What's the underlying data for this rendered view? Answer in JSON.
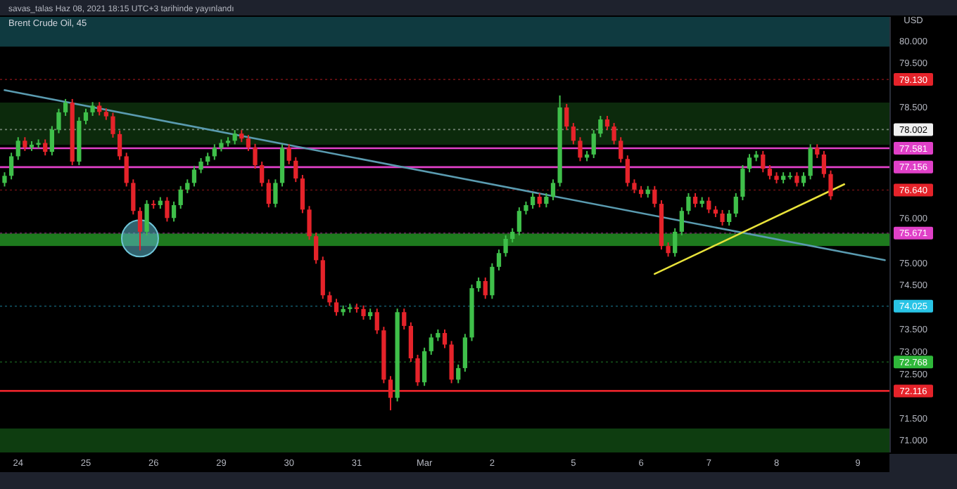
{
  "chart_data": {
    "type": "candlestick",
    "title": "Brent Crude Oil, 45",
    "ylabel": "USD",
    "annotations": [
      "savas_talas Haz 08, 2021 18:15 UTC+3 tarihinde yayınlandı"
    ],
    "categories": [
      null,
      null,
      "24",
      null,
      null,
      null,
      null,
      null,
      null,
      null,
      null,
      null,
      "25",
      null,
      null,
      null,
      null,
      null,
      null,
      null,
      null,
      null,
      "26",
      null,
      null,
      null,
      null,
      null,
      null,
      null,
      null,
      null,
      "29",
      null,
      null,
      null,
      null,
      null,
      null,
      null,
      null,
      null,
      "30",
      null,
      null,
      null,
      null,
      null,
      null,
      null,
      null,
      null,
      "31",
      null,
      null,
      null,
      null,
      null,
      null,
      null,
      null,
      null,
      "Mar",
      null,
      null,
      null,
      null,
      null,
      null,
      null,
      null,
      null,
      "2",
      null,
      null,
      null,
      null,
      null,
      null,
      null,
      null,
      null,
      null,
      null,
      "5",
      null,
      null,
      null,
      null,
      null,
      null,
      null,
      null,
      null,
      "6",
      null,
      null,
      null,
      null,
      null,
      null,
      null,
      null,
      null,
      "7",
      null,
      null,
      null,
      null,
      null,
      null,
      null,
      null,
      null,
      "8",
      null,
      null,
      null,
      null,
      null,
      null,
      null,
      null,
      null,
      null,
      null,
      "9",
      null,
      null,
      null,
      null
    ],
    "colors": [
      "#3fbf4a",
      "#3fbf4a",
      "#3fbf4a",
      "#e5232a",
      "#3fbf4a",
      "#3fbf4a",
      "#e5232a",
      "#3fbf4a",
      "#3fbf4a",
      "#3fbf4a",
      "#e5232a",
      "#3fbf4a",
      "#3fbf4a",
      "#3fbf4a",
      "#e5232a",
      "#e5232a",
      "#e5232a",
      "#e5232a",
      "#e5232a",
      "#e5232a",
      "#e5232a",
      "#3fbf4a",
      "#e5232a",
      "#3fbf4a",
      "#e5232a",
      "#3fbf4a",
      "#3fbf4a",
      "#3fbf4a",
      "#3fbf4a",
      "#3fbf4a",
      "#3fbf4a",
      "#3fbf4a",
      "#3fbf4a",
      "#3fbf4a",
      "#3fbf4a",
      "#e5232a",
      "#e5232a",
      "#e5232a",
      "#e5232a",
      "#e5232a",
      "#3fbf4a",
      "#3fbf4a",
      "#e5232a",
      "#e5232a",
      "#e5232a",
      "#e5232a",
      "#e5232a",
      "#e5232a",
      "#e5232a",
      "#e5232a",
      "#3fbf4a",
      "#3fbf4a",
      "#e5232a",
      "#e5232a",
      "#3fbf4a",
      "#e5232a",
      "#e5232a",
      "#e5232a",
      "#3fbf4a",
      "#e5232a",
      "#e5232a",
      "#e5232a",
      "#3fbf4a",
      "#3fbf4a",
      "#3fbf4a",
      "#e5232a",
      "#e5232a",
      "#3fbf4a",
      "#3fbf4a",
      "#3fbf4a",
      "#3fbf4a",
      "#e5232a",
      "#3fbf4a",
      "#3fbf4a",
      "#3fbf4a",
      "#3fbf4a",
      "#3fbf4a",
      "#3fbf4a",
      "#3fbf4a",
      "#e5232a",
      "#3fbf4a",
      "#3fbf4a",
      "#3fbf4a",
      "#e5232a",
      "#e5232a",
      "#e5232a",
      "#3fbf4a",
      "#3fbf4a",
      "#3fbf4a",
      "#e5232a",
      "#e5232a",
      "#e5232a",
      "#e5232a",
      "#e5232a",
      "#e5232a",
      "#3fbf4a",
      "#e5232a",
      "#e5232a",
      "#e5232a",
      "#3fbf4a",
      "#3fbf4a",
      "#3fbf4a",
      "#e5232a",
      "#3fbf4a",
      "#e5232a",
      "#e5232a",
      "#e5232a",
      "#3fbf4a",
      "#3fbf4a",
      "#3fbf4a",
      "#3fbf4a",
      "#3fbf4a",
      "#e5232a",
      "#e5232a",
      "#e5232a",
      "#3fbf4a",
      "#3fbf4a",
      "#e5232a",
      "#3fbf4a",
      "#3fbf4a",
      "#e5232a",
      "#e5232a",
      "#e5232a",
      null,
      null,
      null,
      null,
      null,
      null,
      null,
      null
    ],
    "ylim": [
      70.73,
      80.54
    ],
    "yticks": [
      {
        "value": 71,
        "label": "71.000"
      },
      {
        "value": 71.5,
        "label": "71.500"
      },
      {
        "value": 72.5,
        "label": "72.500"
      },
      {
        "value": 73,
        "label": "73.000"
      },
      {
        "value": 73.5,
        "label": "73.500"
      },
      {
        "value": 74.5,
        "label": "74.500"
      },
      {
        "value": 75,
        "label": "75.000"
      },
      {
        "value": 76,
        "label": "76.000"
      },
      {
        "value": 78.5,
        "label": "78.500"
      },
      {
        "value": 79.5,
        "label": "79.500"
      },
      {
        "value": 80,
        "label": "80.000"
      }
    ],
    "bands": [
      {
        "axis": "y",
        "from": 79.87,
        "to": 80.54,
        "color": "#0f3a40"
      },
      {
        "axis": "y",
        "from": 77.66,
        "to": 78.61,
        "color": "#0c2a0c"
      },
      {
        "axis": "y",
        "from": 75.38,
        "to": 75.66,
        "color": "#1e7a1e"
      },
      {
        "axis": "y",
        "from": 70.73,
        "to": 71.27,
        "color": "#0e3d10"
      }
    ],
    "ref_lines": [
      {
        "axis": "y",
        "value": 79.13,
        "label": "79.130",
        "color": "#e5232a",
        "line_style": "dotted"
      },
      {
        "axis": "y",
        "value": 78.002,
        "label": "78.002",
        "color": "#f0f0f0",
        "line_style": "dotted"
      },
      {
        "axis": "y",
        "value": 77.581,
        "label": "77.581",
        "color": "#e040c8",
        "line_style": "solid"
      },
      {
        "axis": "y",
        "value": 77.156,
        "label": "77.156",
        "color": "#e040c8",
        "line_style": "solid"
      },
      {
        "axis": "y",
        "value": 76.64,
        "label": "76.640",
        "color": "#e5232a",
        "line_style": "dotted"
      },
      {
        "axis": "y",
        "value": 75.671,
        "label": "75.671",
        "color": "#e040c8",
        "line_style": "dotted"
      },
      {
        "axis": "y",
        "value": 74.025,
        "label": "74.025",
        "color": "#29c4e6",
        "line_style": "dotted"
      },
      {
        "axis": "y",
        "value": 72.768,
        "label": "72.768",
        "color": "#2fb83a",
        "line_style": "dotted"
      },
      {
        "axis": "y",
        "value": 72.116,
        "label": "72.116",
        "color": "#e5232a",
        "line_style": "solid"
      }
    ],
    "series": [
      {
        "type": "line",
        "color": "#5a9bb0",
        "values": [
          78.89,
          null,
          null,
          null,
          null,
          null,
          null,
          null,
          null,
          null,
          null,
          null,
          null,
          null,
          null,
          null,
          null,
          null,
          null,
          null,
          null,
          null,
          null,
          null,
          null,
          null,
          null,
          null,
          null,
          null,
          null,
          null,
          null,
          null,
          null,
          null,
          null,
          null,
          null,
          null,
          null,
          null,
          null,
          null,
          null,
          null,
          null,
          null,
          null,
          null,
          null,
          null,
          null,
          null,
          null,
          null,
          null,
          null,
          null,
          null,
          null,
          null,
          null,
          null,
          null,
          null,
          null,
          null,
          null,
          null,
          null,
          null,
          null,
          null,
          null,
          null,
          null,
          null,
          null,
          null,
          null,
          null,
          null,
          null,
          null,
          null,
          null,
          null,
          null,
          null,
          null,
          null,
          null,
          null,
          null,
          null,
          null,
          null,
          null,
          null,
          null,
          null,
          null,
          null,
          null,
          null,
          null,
          null,
          null,
          null,
          null,
          null,
          null,
          null,
          null,
          null,
          null,
          null,
          null,
          null,
          null,
          null,
          null,
          null,
          null,
          null,
          null,
          null,
          null,
          null,
          75.06
        ]
      },
      {
        "type": "line",
        "color": "#e8e23a",
        "values": [
          null,
          null,
          null,
          null,
          null,
          null,
          null,
          null,
          null,
          null,
          null,
          null,
          null,
          null,
          null,
          null,
          null,
          null,
          null,
          null,
          null,
          null,
          null,
          null,
          null,
          null,
          null,
          null,
          null,
          null,
          null,
          null,
          null,
          null,
          null,
          null,
          null,
          null,
          null,
          null,
          null,
          null,
          null,
          null,
          null,
          null,
          null,
          null,
          null,
          null,
          null,
          null,
          null,
          null,
          null,
          null,
          null,
          null,
          null,
          null,
          null,
          null,
          null,
          null,
          null,
          null,
          null,
          null,
          null,
          null,
          null,
          null,
          null,
          null,
          null,
          null,
          null,
          null,
          null,
          null,
          null,
          null,
          null,
          null,
          null,
          null,
          null,
          null,
          null,
          null,
          null,
          null,
          null,
          null,
          null,
          null,
          74.75,
          null,
          null,
          null,
          null,
          null,
          null,
          null,
          null,
          null,
          null,
          null,
          null,
          null,
          null,
          null,
          null,
          null,
          null,
          null,
          null,
          null,
          null,
          null,
          null,
          null,
          null,
          null,
          76.77,
          null,
          null,
          null,
          null,
          null,
          null
        ]
      }
    ],
    "ohlc": [
      [
        76.8,
        77.04,
        76.72,
        76.96
      ],
      [
        76.96,
        77.48,
        76.88,
        77.4
      ],
      [
        77.4,
        77.83,
        77.32,
        77.75
      ],
      [
        77.75,
        77.83,
        77.52,
        77.6
      ],
      [
        77.6,
        77.74,
        77.52,
        77.66
      ],
      [
        77.66,
        77.78,
        77.58,
        77.7
      ],
      [
        77.7,
        77.78,
        77.42,
        77.5
      ],
      [
        77.5,
        78.08,
        77.42,
        78.0
      ],
      [
        78.0,
        78.47,
        77.92,
        78.39
      ],
      [
        78.39,
        78.69,
        78.31,
        78.61
      ],
      [
        78.61,
        78.69,
        77.2,
        77.28
      ],
      [
        77.28,
        78.28,
        77.2,
        78.2
      ],
      [
        78.2,
        78.47,
        78.12,
        78.39
      ],
      [
        78.39,
        78.62,
        78.31,
        78.54
      ],
      [
        78.54,
        78.62,
        78.32,
        78.4
      ],
      [
        78.4,
        78.48,
        78.22,
        78.3
      ],
      [
        78.3,
        78.38,
        77.82,
        77.9
      ],
      [
        77.9,
        77.98,
        77.32,
        77.4
      ],
      [
        77.4,
        77.48,
        76.72,
        76.8
      ],
      [
        76.8,
        76.88,
        76.09,
        76.17
      ],
      [
        76.17,
        76.25,
        75.28,
        75.7
      ],
      [
        75.7,
        76.41,
        75.62,
        76.33
      ],
      [
        76.33,
        76.41,
        76.22,
        76.3
      ],
      [
        76.3,
        76.48,
        76.22,
        76.4
      ],
      [
        76.4,
        76.48,
        75.93,
        76.01
      ],
      [
        76.01,
        76.38,
        75.93,
        76.3
      ],
      [
        76.3,
        76.73,
        76.22,
        76.65
      ],
      [
        76.65,
        76.88,
        76.57,
        76.8
      ],
      [
        76.8,
        77.18,
        76.72,
        77.1
      ],
      [
        77.1,
        77.36,
        77.02,
        77.28
      ],
      [
        77.28,
        77.48,
        77.2,
        77.4
      ],
      [
        77.4,
        77.67,
        77.32,
        77.59
      ],
      [
        77.59,
        77.78,
        77.51,
        77.7
      ],
      [
        77.7,
        77.83,
        77.62,
        77.75
      ],
      [
        77.75,
        77.99,
        77.67,
        77.91
      ],
      [
        77.91,
        77.99,
        77.72,
        77.8
      ],
      [
        77.8,
        77.88,
        77.52,
        77.6
      ],
      [
        77.6,
        77.68,
        77.12,
        77.2
      ],
      [
        77.2,
        77.28,
        76.72,
        76.8
      ],
      [
        76.8,
        76.88,
        76.25,
        76.33
      ],
      [
        76.33,
        76.88,
        76.25,
        76.8
      ],
      [
        76.8,
        77.67,
        76.72,
        77.59
      ],
      [
        77.59,
        77.67,
        77.22,
        77.3
      ],
      [
        77.3,
        77.38,
        76.82,
        76.9
      ],
      [
        76.9,
        76.98,
        76.12,
        76.2
      ],
      [
        76.2,
        76.28,
        75.52,
        75.6
      ],
      [
        75.6,
        75.68,
        74.98,
        75.06
      ],
      [
        75.06,
        75.14,
        74.19,
        74.27
      ],
      [
        74.27,
        74.35,
        74.03,
        74.11
      ],
      [
        74.11,
        74.19,
        73.81,
        73.89
      ],
      [
        73.89,
        74.04,
        73.81,
        73.96
      ],
      [
        73.96,
        74.08,
        73.88,
        74.0
      ],
      [
        74.0,
        74.08,
        73.88,
        73.96
      ],
      [
        73.96,
        74.04,
        73.72,
        73.8
      ],
      [
        73.8,
        73.97,
        73.72,
        73.89
      ],
      [
        73.89,
        73.97,
        73.4,
        73.48
      ],
      [
        73.48,
        73.56,
        72.29,
        72.37
      ],
      [
        72.37,
        72.45,
        71.68,
        71.96
      ],
      [
        71.96,
        73.97,
        71.88,
        73.89
      ],
      [
        73.89,
        73.97,
        73.5,
        73.58
      ],
      [
        73.58,
        73.66,
        72.77,
        72.85
      ],
      [
        72.85,
        72.93,
        72.23,
        72.31
      ],
      [
        72.31,
        73.09,
        72.23,
        73.01
      ],
      [
        73.01,
        73.4,
        72.93,
        73.32
      ],
      [
        73.32,
        73.5,
        73.24,
        73.42
      ],
      [
        73.42,
        73.5,
        73.08,
        73.16
      ],
      [
        73.16,
        73.24,
        72.29,
        72.37
      ],
      [
        72.37,
        72.71,
        72.29,
        72.63
      ],
      [
        72.63,
        73.4,
        72.55,
        73.32
      ],
      [
        73.32,
        74.51,
        73.24,
        74.43
      ],
      [
        74.43,
        74.67,
        74.35,
        74.59
      ],
      [
        74.59,
        74.67,
        74.19,
        74.27
      ],
      [
        74.27,
        74.99,
        74.19,
        74.91
      ],
      [
        74.91,
        75.3,
        74.83,
        75.22
      ],
      [
        75.22,
        75.62,
        75.14,
        75.54
      ],
      [
        75.54,
        75.78,
        75.46,
        75.7
      ],
      [
        75.7,
        76.25,
        75.62,
        76.17
      ],
      [
        76.17,
        76.38,
        76.09,
        76.3
      ],
      [
        76.3,
        76.57,
        76.22,
        76.49
      ],
      [
        76.49,
        76.57,
        76.25,
        76.33
      ],
      [
        76.33,
        76.57,
        76.25,
        76.49
      ],
      [
        76.49,
        76.88,
        76.41,
        76.8
      ],
      [
        76.8,
        78.77,
        76.72,
        78.5
      ],
      [
        78.5,
        78.58,
        77.99,
        78.07
      ],
      [
        78.07,
        78.15,
        77.67,
        77.75
      ],
      [
        77.75,
        77.83,
        77.29,
        77.37
      ],
      [
        77.37,
        77.52,
        77.29,
        77.44
      ],
      [
        77.44,
        77.99,
        77.36,
        77.91
      ],
      [
        77.91,
        78.31,
        77.83,
        78.23
      ],
      [
        78.23,
        78.31,
        77.99,
        78.07
      ],
      [
        78.07,
        78.15,
        77.67,
        77.75
      ],
      [
        77.75,
        77.83,
        77.26,
        77.34
      ],
      [
        77.34,
        77.42,
        76.72,
        76.8
      ],
      [
        76.8,
        76.88,
        76.57,
        76.65
      ],
      [
        76.65,
        76.73,
        76.47,
        76.55
      ],
      [
        76.55,
        76.73,
        76.47,
        76.65
      ],
      [
        76.65,
        76.73,
        76.25,
        76.33
      ],
      [
        76.33,
        76.41,
        75.3,
        75.38
      ],
      [
        75.38,
        75.46,
        75.14,
        75.22
      ],
      [
        75.22,
        75.78,
        75.14,
        75.7
      ],
      [
        75.7,
        76.25,
        75.62,
        76.17
      ],
      [
        76.17,
        76.57,
        76.09,
        76.49
      ],
      [
        76.49,
        76.57,
        76.25,
        76.33
      ],
      [
        76.33,
        76.48,
        76.25,
        76.4
      ],
      [
        76.4,
        76.48,
        76.12,
        76.2
      ],
      [
        76.2,
        76.28,
        76.03,
        76.11
      ],
      [
        76.11,
        76.19,
        75.84,
        75.92
      ],
      [
        75.92,
        76.19,
        75.84,
        76.11
      ],
      [
        76.11,
        76.57,
        76.03,
        76.49
      ],
      [
        76.49,
        77.2,
        76.41,
        77.12
      ],
      [
        77.12,
        77.45,
        77.04,
        77.37
      ],
      [
        77.37,
        77.52,
        77.29,
        77.44
      ],
      [
        77.44,
        77.52,
        77.04,
        77.12
      ],
      [
        77.12,
        77.2,
        76.88,
        76.96
      ],
      [
        76.96,
        77.04,
        76.79,
        76.87
      ],
      [
        76.87,
        77.04,
        76.79,
        76.96
      ],
      [
        76.96,
        77.04,
        76.88,
        76.96
      ],
      [
        76.96,
        77.04,
        76.72,
        76.8
      ],
      [
        76.8,
        77.04,
        76.72,
        76.96
      ],
      [
        76.96,
        77.67,
        76.88,
        77.59
      ],
      [
        77.59,
        77.67,
        77.36,
        77.44
      ],
      [
        77.44,
        77.52,
        76.92,
        77.0
      ],
      [
        77.0,
        77.08,
        76.42,
        76.5
      ],
      null,
      null,
      null,
      null,
      null,
      null,
      null,
      null
    ]
  }
}
